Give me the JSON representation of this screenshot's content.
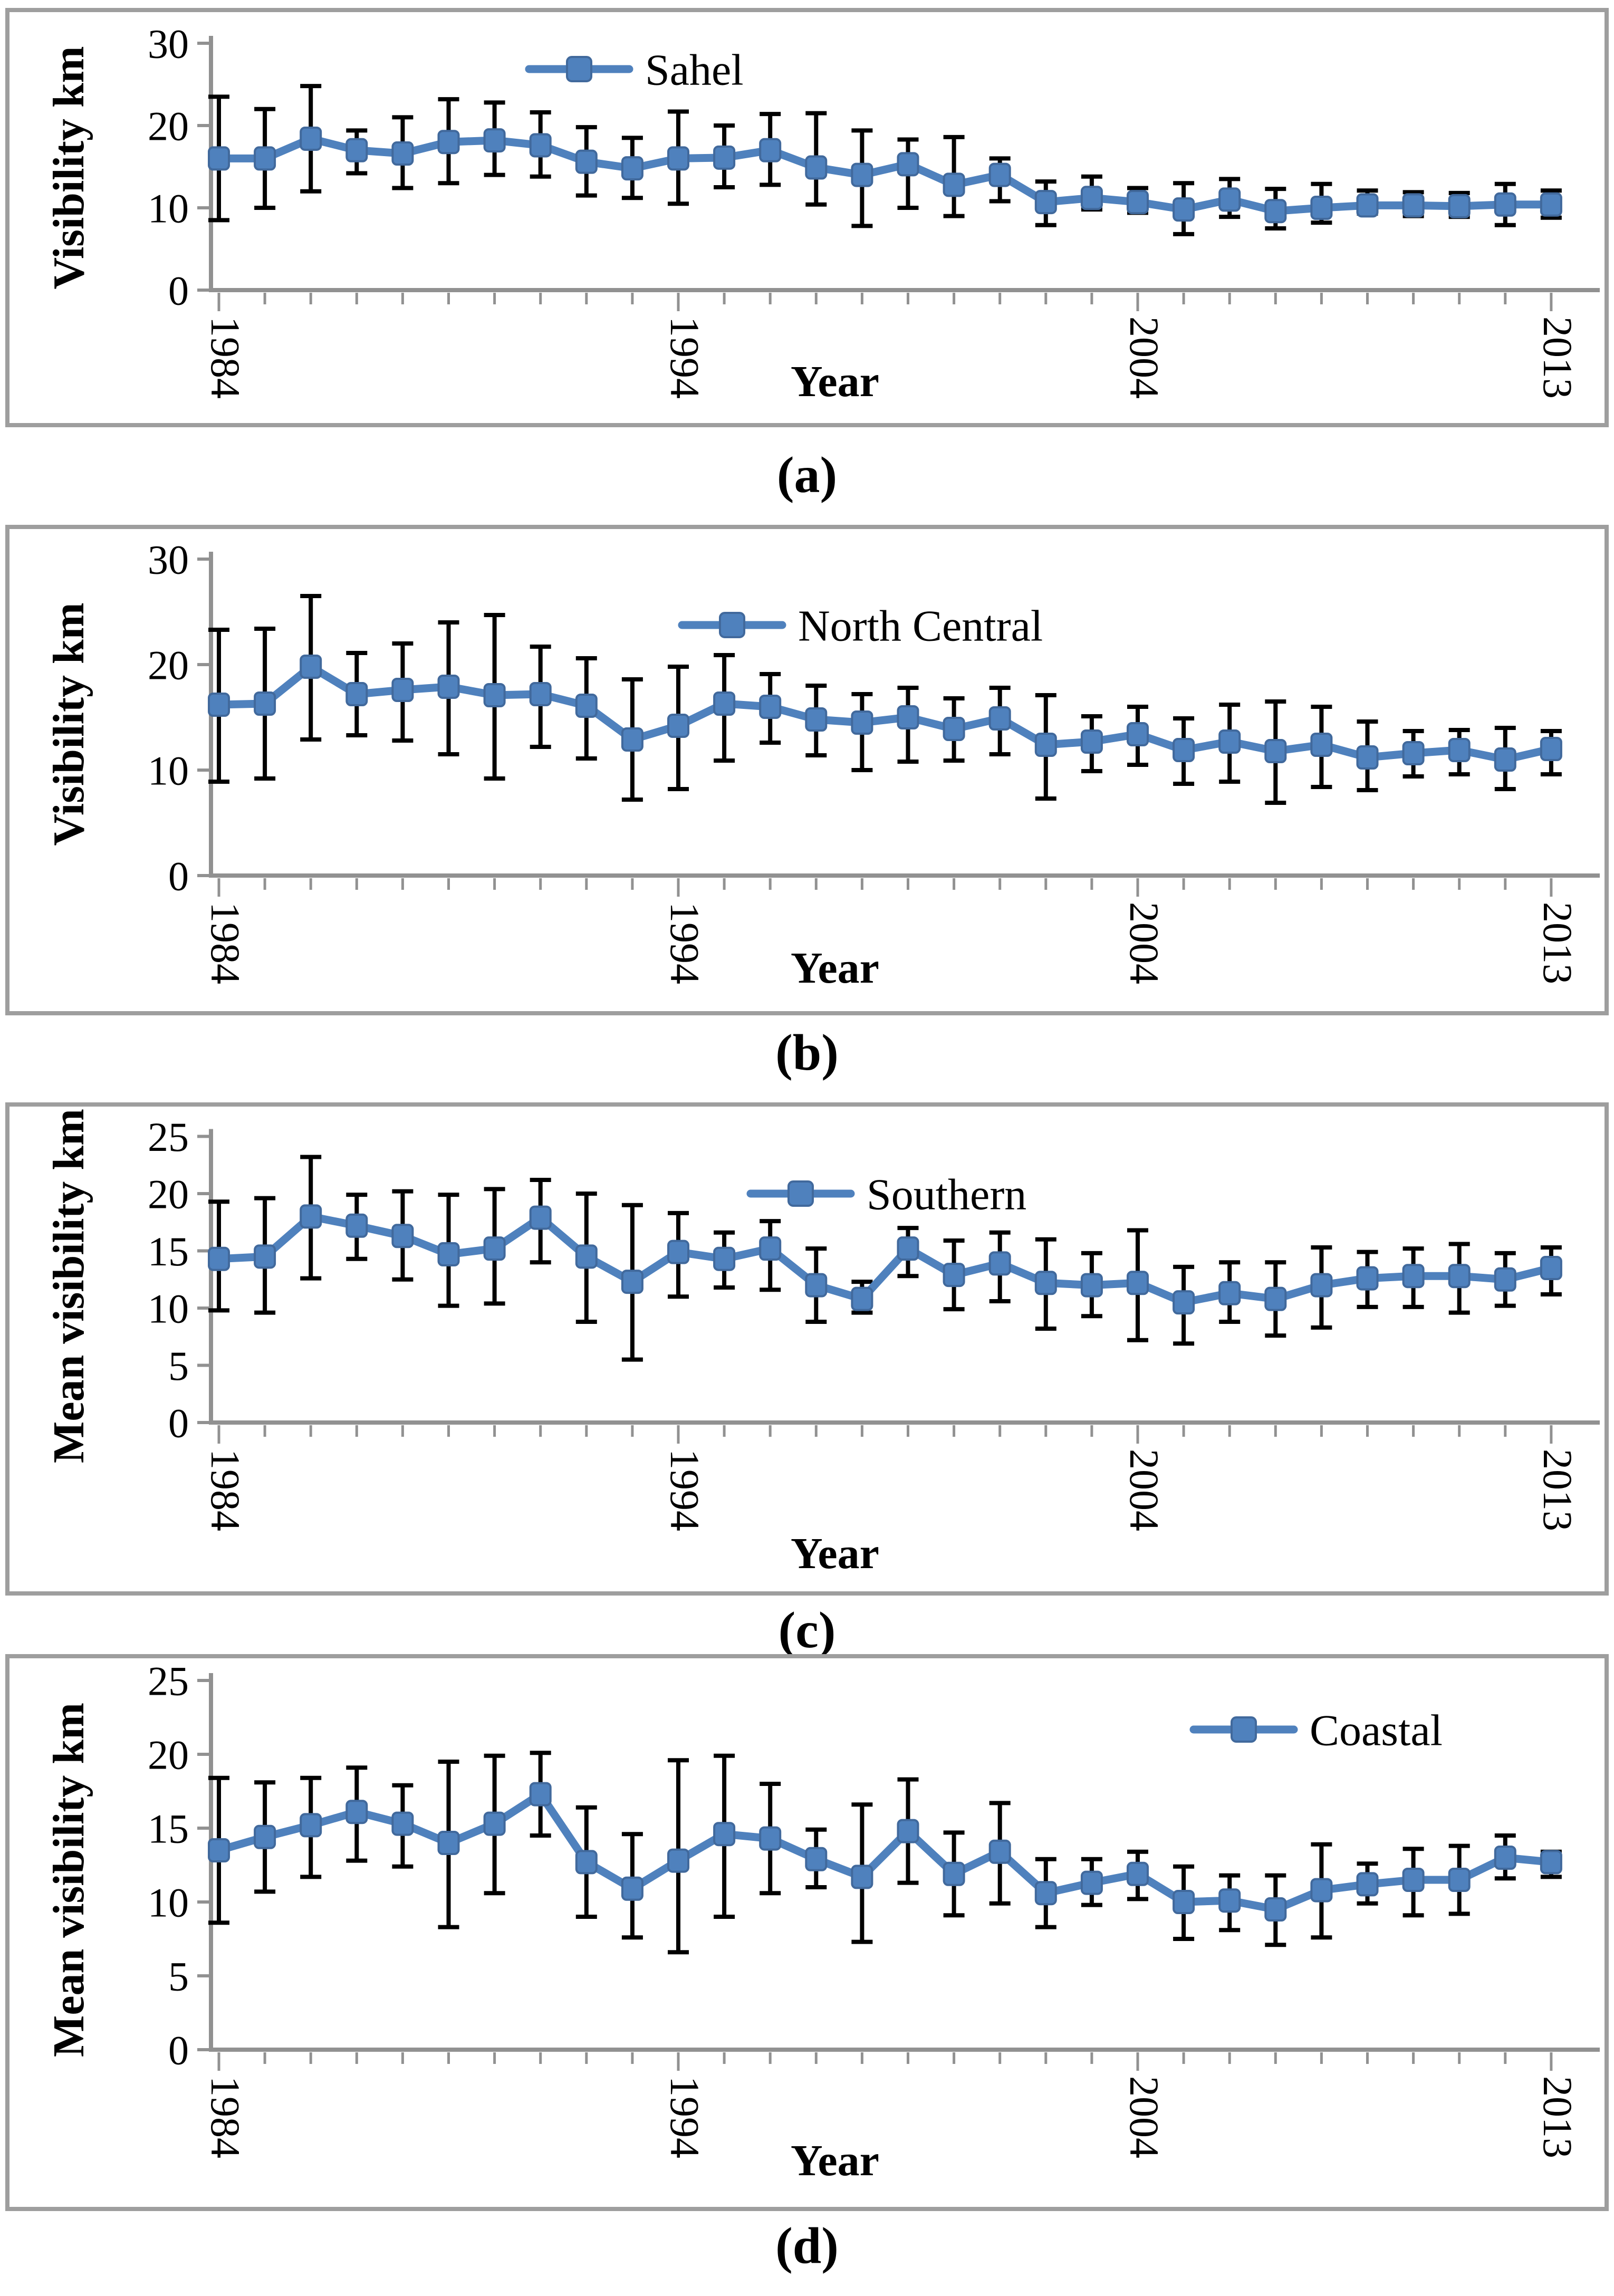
{
  "figure": {
    "background": "#ffffff",
    "caption_a": "(a)",
    "caption_b": "(b)",
    "caption_c": "(c)",
    "caption_d": "(d)"
  },
  "style": {
    "series_color": "#4F81BD",
    "marker_edge_color": "#41699C",
    "error_bar_color": "#000000",
    "axis_color": "#919191",
    "border_color": "#9E9E9E",
    "text_color": "#000000"
  },
  "chart_data": [
    {
      "id": "a",
      "caption": "(a)",
      "type": "line",
      "legend_position": "top-center",
      "grid": false,
      "xlabel": "Year",
      "ylabel": "Visibility km",
      "ylim": [
        0,
        30
      ],
      "y_ticks": [
        0,
        10,
        20,
        30
      ],
      "x": [
        1984,
        1985,
        1986,
        1987,
        1988,
        1989,
        1990,
        1991,
        1992,
        1993,
        1994,
        1995,
        1996,
        1997,
        1998,
        1999,
        2000,
        2001,
        2002,
        2003,
        2004,
        2005,
        2006,
        2007,
        2008,
        2009,
        2010,
        2011,
        2012,
        2013
      ],
      "visible_x_tick_labels": [
        "1984",
        "1994",
        "2004",
        "2013"
      ],
      "series": [
        {
          "name": "Sahel",
          "values": [
            16.0,
            16.0,
            18.4,
            17.0,
            16.6,
            18.0,
            18.2,
            17.6,
            15.6,
            14.8,
            16.0,
            16.1,
            17.0,
            14.9,
            14.0,
            15.3,
            12.8,
            14.0,
            10.7,
            11.2,
            10.7,
            9.8,
            11.0,
            9.6,
            10.0,
            10.3,
            10.3,
            10.2,
            10.4,
            10.4
          ],
          "error_low": [
            8.5,
            10.0,
            12.0,
            14.2,
            12.4,
            13.0,
            14.0,
            13.8,
            11.5,
            11.2,
            10.5,
            12.5,
            12.8,
            10.4,
            7.8,
            10.0,
            9.0,
            10.8,
            7.9,
            9.8,
            9.4,
            6.8,
            8.9,
            7.5,
            8.2,
            9.3,
            9.0,
            8.9,
            7.9,
            8.8
          ],
          "error_high": [
            23.5,
            22.0,
            24.8,
            19.4,
            21.0,
            23.2,
            22.8,
            21.6,
            19.8,
            18.5,
            21.7,
            20.0,
            21.4,
            21.5,
            19.4,
            18.3,
            18.6,
            16.0,
            13.2,
            13.8,
            12.4,
            13.0,
            13.5,
            12.3,
            12.9,
            12.1,
            11.9,
            11.8,
            12.9,
            12.1
          ]
        }
      ]
    },
    {
      "id": "b",
      "caption": "(b)",
      "type": "line",
      "legend_position": "top-center",
      "grid": false,
      "xlabel": "Year",
      "ylabel": "Visibility km",
      "ylim": [
        0,
        30
      ],
      "y_ticks": [
        0,
        10,
        20,
        30
      ],
      "x": [
        1984,
        1985,
        1986,
        1987,
        1988,
        1989,
        1990,
        1991,
        1992,
        1993,
        1994,
        1995,
        1996,
        1997,
        1998,
        1999,
        2000,
        2001,
        2002,
        2003,
        2004,
        2005,
        2006,
        2007,
        2008,
        2009,
        2010,
        2011,
        2012,
        2013
      ],
      "visible_x_tick_labels": [
        "1984",
        "1994",
        "2004",
        "2013"
      ],
      "series": [
        {
          "name": "North Central",
          "values": [
            16.2,
            16.3,
            19.8,
            17.2,
            17.6,
            17.9,
            17.1,
            17.2,
            16.1,
            12.9,
            14.2,
            16.3,
            16.0,
            14.8,
            14.5,
            15.0,
            13.9,
            14.9,
            12.4,
            12.7,
            13.4,
            11.9,
            12.7,
            11.8,
            12.4,
            11.2,
            11.6,
            11.9,
            11.0,
            12.0
          ],
          "error_low": [
            8.9,
            9.2,
            12.9,
            13.3,
            12.8,
            11.5,
            9.2,
            12.2,
            11.1,
            7.2,
            8.2,
            10.9,
            12.6,
            11.4,
            10.0,
            10.8,
            10.9,
            11.5,
            7.3,
            9.9,
            10.5,
            8.7,
            8.9,
            6.9,
            8.4,
            8.1,
            9.4,
            9.6,
            8.2,
            9.6
          ],
          "error_high": [
            23.3,
            23.4,
            26.5,
            21.1,
            22.0,
            24.0,
            24.7,
            21.7,
            20.6,
            18.6,
            19.8,
            20.9,
            19.1,
            18.0,
            17.2,
            17.8,
            16.8,
            17.8,
            17.1,
            15.1,
            16.0,
            14.9,
            16.2,
            16.5,
            16.0,
            14.6,
            13.7,
            13.8,
            14.0,
            13.7
          ]
        }
      ]
    },
    {
      "id": "c",
      "caption": "(c)",
      "type": "line",
      "legend_position": "top-center",
      "grid": false,
      "xlabel": "Year",
      "ylabel": "Mean visibility km",
      "ylim": [
        0,
        25
      ],
      "y_ticks": [
        0,
        5,
        10,
        15,
        20,
        25
      ],
      "x": [
        1984,
        1985,
        1986,
        1987,
        1988,
        1989,
        1990,
        1991,
        1992,
        1993,
        1994,
        1995,
        1996,
        1997,
        1998,
        1999,
        2000,
        2001,
        2002,
        2003,
        2004,
        2005,
        2006,
        2007,
        2008,
        2009,
        2010,
        2011,
        2012,
        2013
      ],
      "visible_x_tick_labels": [
        "1984",
        "1994",
        "2004",
        "2013"
      ],
      "series": [
        {
          "name": "Southern",
          "values": [
            14.3,
            14.5,
            18.0,
            17.2,
            16.3,
            14.7,
            15.2,
            17.9,
            14.5,
            12.3,
            14.9,
            14.3,
            15.2,
            12.0,
            10.8,
            15.2,
            12.9,
            13.9,
            12.2,
            12.0,
            12.2,
            10.5,
            11.3,
            10.8,
            12.0,
            12.6,
            12.8,
            12.8,
            12.5,
            13.5
          ],
          "error_low": [
            9.8,
            9.6,
            12.6,
            14.3,
            12.5,
            10.2,
            10.4,
            14.0,
            8.8,
            5.5,
            11.0,
            11.8,
            11.6,
            8.8,
            9.6,
            12.8,
            9.9,
            10.6,
            8.2,
            9.3,
            7.2,
            6.9,
            8.8,
            7.6,
            8.3,
            10.1,
            10.1,
            9.6,
            10.2,
            11.2
          ],
          "error_high": [
            19.3,
            19.6,
            23.2,
            19.9,
            20.2,
            19.9,
            20.4,
            21.2,
            20.0,
            19.0,
            18.3,
            16.6,
            17.6,
            15.2,
            12.3,
            17.0,
            15.9,
            16.6,
            16.0,
            14.8,
            16.8,
            13.6,
            14.0,
            14.0,
            15.3,
            14.9,
            15.2,
            15.6,
            14.8,
            15.3
          ]
        }
      ]
    },
    {
      "id": "d",
      "caption": "(d)",
      "type": "line",
      "legend_position": "top-right",
      "grid": false,
      "xlabel": "Year",
      "ylabel": "Mean visibility km",
      "ylim": [
        0,
        25
      ],
      "y_ticks": [
        0,
        5,
        10,
        15,
        20,
        25
      ],
      "x": [
        1984,
        1985,
        1986,
        1987,
        1988,
        1989,
        1990,
        1991,
        1992,
        1993,
        1994,
        1995,
        1996,
        1997,
        1998,
        1999,
        2000,
        2001,
        2002,
        2003,
        2004,
        2005,
        2006,
        2007,
        2008,
        2009,
        2010,
        2011,
        2012,
        2013
      ],
      "visible_x_tick_labels": [
        "1984",
        "1994",
        "2004",
        "2013"
      ],
      "series": [
        {
          "name": "Coastal",
          "values": [
            13.5,
            14.4,
            15.2,
            16.1,
            15.3,
            14.0,
            15.3,
            17.3,
            12.7,
            10.9,
            12.8,
            14.6,
            14.3,
            12.9,
            11.7,
            14.8,
            11.9,
            13.4,
            10.6,
            11.3,
            11.9,
            10.0,
            10.1,
            9.5,
            10.8,
            11.2,
            11.5,
            11.5,
            13.0,
            12.7
          ],
          "error_low": [
            8.6,
            10.7,
            11.7,
            12.8,
            12.4,
            8.3,
            10.6,
            14.5,
            9.0,
            7.6,
            6.6,
            9.0,
            10.6,
            11.0,
            7.3,
            11.3,
            9.1,
            9.9,
            8.3,
            9.8,
            10.2,
            7.5,
            8.1,
            7.1,
            7.6,
            9.9,
            9.1,
            9.2,
            11.6,
            11.7
          ],
          "error_high": [
            18.4,
            18.1,
            18.4,
            19.1,
            17.9,
            19.5,
            19.9,
            20.1,
            16.4,
            14.6,
            19.6,
            19.9,
            18.0,
            14.9,
            16.6,
            18.3,
            14.7,
            16.7,
            12.9,
            12.9,
            13.4,
            12.4,
            11.8,
            11.8,
            13.9,
            12.6,
            13.6,
            13.8,
            14.5,
            13.4
          ]
        }
      ]
    }
  ]
}
